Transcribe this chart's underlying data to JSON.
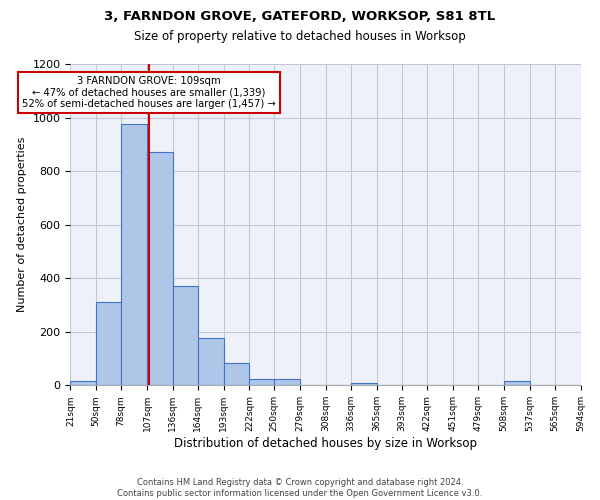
{
  "title_line1": "3, FARNDON GROVE, GATEFORD, WORKSOP, S81 8TL",
  "title_line2": "Size of property relative to detached houses in Worksop",
  "xlabel": "Distribution of detached houses by size in Worksop",
  "ylabel": "Number of detached properties",
  "footer_line1": "Contains HM Land Registry data © Crown copyright and database right 2024.",
  "footer_line2": "Contains public sector information licensed under the Open Government Licence v3.0.",
  "annotation_line1": "3 FARNDON GROVE: 109sqm",
  "annotation_line2": "← 47% of detached houses are smaller (1,339)",
  "annotation_line3": "52% of semi-detached houses are larger (1,457) →",
  "marker_value": 109,
  "bin_edges": [
    21,
    50,
    78,
    107,
    136,
    164,
    193,
    222,
    250,
    279,
    308,
    336,
    365,
    393,
    422,
    451,
    479,
    508,
    537,
    565,
    594
  ],
  "bar_values": [
    15,
    310,
    975,
    870,
    370,
    175,
    85,
    25,
    25,
    0,
    0,
    10,
    0,
    0,
    0,
    0,
    0,
    15,
    0,
    0
  ],
  "bar_color": "#aec6e8",
  "bar_edge_color": "#4472c4",
  "marker_line_color": "#cc0000",
  "annotation_box_edge_color": "#cc0000",
  "grid_color": "#c0c8d8",
  "background_color": "#eef2f8",
  "ylim": [
    0,
    1200
  ],
  "yticks": [
    0,
    200,
    400,
    600,
    800,
    1000,
    1200
  ]
}
